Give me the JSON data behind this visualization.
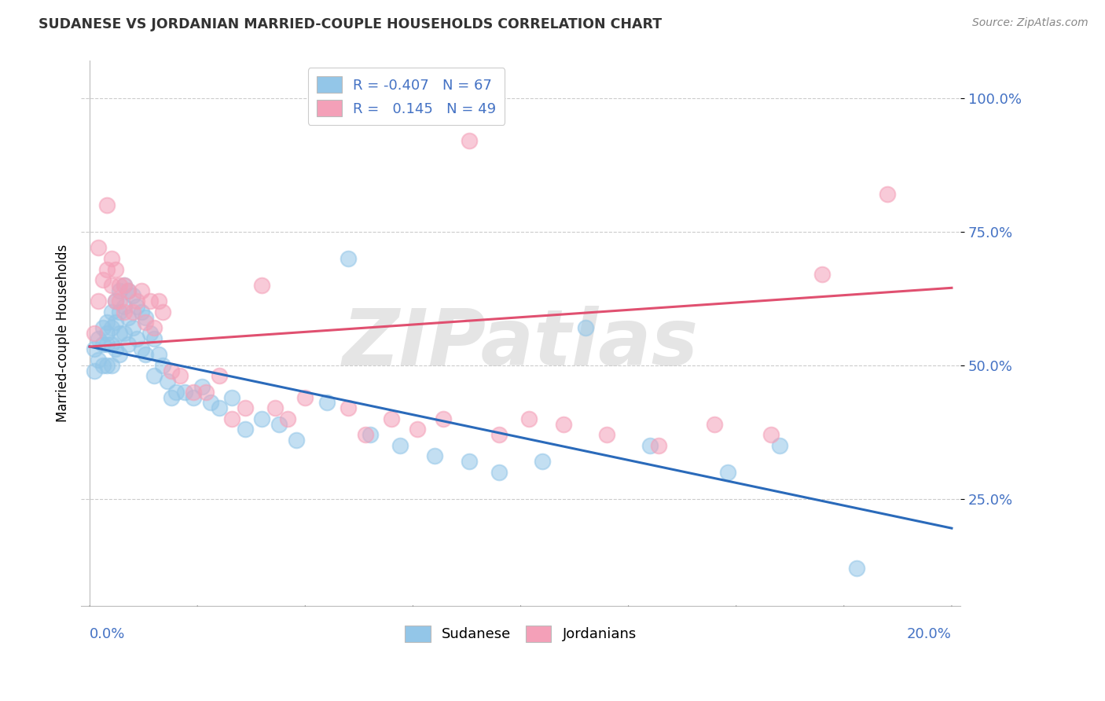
{
  "title": "SUDANESE VS JORDANIAN MARRIED-COUPLE HOUSEHOLDS CORRELATION CHART",
  "source": "Source: ZipAtlas.com",
  "ylabel": "Married-couple Households",
  "ytick_labels": [
    "100.0%",
    "75.0%",
    "50.0%",
    "25.0%"
  ],
  "ytick_values": [
    1.0,
    0.75,
    0.5,
    0.25
  ],
  "xtick_values": [
    0.0,
    0.025,
    0.05,
    0.075,
    0.1,
    0.125,
    0.15,
    0.175,
    0.2
  ],
  "xlim": [
    -0.002,
    0.202
  ],
  "ylim": [
    0.05,
    1.07
  ],
  "color_blue": "#93c6e8",
  "color_pink": "#f4a0b8",
  "line_blue": "#2a6aba",
  "line_pink": "#e05070",
  "blue_scatter_x": [
    0.001,
    0.001,
    0.002,
    0.002,
    0.003,
    0.003,
    0.003,
    0.004,
    0.004,
    0.004,
    0.004,
    0.005,
    0.005,
    0.005,
    0.005,
    0.006,
    0.006,
    0.006,
    0.007,
    0.007,
    0.007,
    0.007,
    0.008,
    0.008,
    0.008,
    0.009,
    0.009,
    0.009,
    0.01,
    0.01,
    0.011,
    0.011,
    0.012,
    0.012,
    0.013,
    0.013,
    0.014,
    0.015,
    0.015,
    0.016,
    0.017,
    0.018,
    0.019,
    0.02,
    0.022,
    0.024,
    0.026,
    0.028,
    0.03,
    0.033,
    0.036,
    0.04,
    0.044,
    0.048,
    0.055,
    0.06,
    0.065,
    0.072,
    0.08,
    0.088,
    0.095,
    0.105,
    0.115,
    0.13,
    0.148,
    0.16,
    0.178
  ],
  "blue_scatter_y": [
    0.53,
    0.49,
    0.55,
    0.51,
    0.57,
    0.54,
    0.5,
    0.58,
    0.56,
    0.54,
    0.5,
    0.6,
    0.57,
    0.54,
    0.5,
    0.62,
    0.58,
    0.53,
    0.64,
    0.6,
    0.56,
    0.52,
    0.65,
    0.61,
    0.56,
    0.64,
    0.59,
    0.54,
    0.63,
    0.57,
    0.61,
    0.55,
    0.6,
    0.53,
    0.59,
    0.52,
    0.56,
    0.55,
    0.48,
    0.52,
    0.5,
    0.47,
    0.44,
    0.45,
    0.45,
    0.44,
    0.46,
    0.43,
    0.42,
    0.44,
    0.38,
    0.4,
    0.39,
    0.36,
    0.43,
    0.7,
    0.37,
    0.35,
    0.33,
    0.32,
    0.3,
    0.32,
    0.57,
    0.35,
    0.3,
    0.35,
    0.12
  ],
  "pink_scatter_x": [
    0.001,
    0.002,
    0.002,
    0.003,
    0.004,
    0.004,
    0.005,
    0.005,
    0.006,
    0.006,
    0.007,
    0.007,
    0.008,
    0.008,
    0.009,
    0.01,
    0.011,
    0.012,
    0.013,
    0.014,
    0.015,
    0.016,
    0.017,
    0.019,
    0.021,
    0.024,
    0.027,
    0.03,
    0.033,
    0.036,
    0.04,
    0.043,
    0.046,
    0.05,
    0.06,
    0.064,
    0.07,
    0.076,
    0.082,
    0.088,
    0.095,
    0.102,
    0.11,
    0.12,
    0.132,
    0.145,
    0.158,
    0.17,
    0.185
  ],
  "pink_scatter_y": [
    0.56,
    0.62,
    0.72,
    0.66,
    0.8,
    0.68,
    0.65,
    0.7,
    0.62,
    0.68,
    0.65,
    0.62,
    0.65,
    0.6,
    0.64,
    0.6,
    0.62,
    0.64,
    0.58,
    0.62,
    0.57,
    0.62,
    0.6,
    0.49,
    0.48,
    0.45,
    0.45,
    0.48,
    0.4,
    0.42,
    0.65,
    0.42,
    0.4,
    0.44,
    0.42,
    0.37,
    0.4,
    0.38,
    0.4,
    0.92,
    0.37,
    0.4,
    0.39,
    0.37,
    0.35,
    0.39,
    0.37,
    0.67,
    0.82
  ],
  "blue_line_x": [
    0.0,
    0.2
  ],
  "blue_line_y": [
    0.535,
    0.195
  ],
  "pink_line_x": [
    0.0,
    0.2
  ],
  "pink_line_y": [
    0.535,
    0.645
  ],
  "watermark": "ZIPatlas",
  "grid_color": "#cccccc",
  "title_color": "#333333",
  "tick_label_color": "#4472c4",
  "legend_text_color": "#4472c4"
}
